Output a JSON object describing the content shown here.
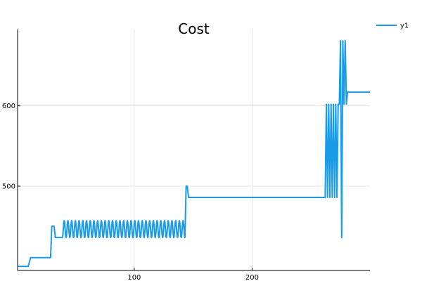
{
  "chart_data": {
    "type": "line",
    "title": "Cost",
    "xlabel": "",
    "ylabel": "",
    "xlim": [
      1,
      300
    ],
    "ylim": [
      395,
      695
    ],
    "x_ticks": [
      100,
      200
    ],
    "y_ticks": [
      500,
      600
    ],
    "x_tick_labels": [
      "100",
      "200"
    ],
    "y_tick_labels": [
      "500",
      "600"
    ],
    "grid": true,
    "legend_position": "top-right",
    "series": [
      {
        "name": "y1",
        "color": "#1a9be8",
        "segments": [
          {
            "x": [
              1,
              10,
              12,
              29,
              30,
              32,
              33
            ],
            "y": [
              400,
              400,
              411,
              411,
              450,
              450,
              436
            ]
          },
          {
            "type": "oscillation",
            "x_start": 39,
            "x_end": 143,
            "y_low": 436,
            "y_high": 457,
            "cycles": 33
          },
          {
            "x": [
              143,
              144,
              145,
              146,
              147,
              262
            ],
            "y": [
              436,
              500,
              500,
              486,
              486,
              486
            ]
          },
          {
            "x": [
              262,
              263,
              264,
              265,
              266,
              267,
              268,
              269,
              270,
              271,
              272,
              273,
              274,
              275,
              276,
              277,
              278,
              279,
              280,
              281,
              282,
              283,
              300
            ],
            "y": [
              486,
              602,
              486,
              602,
              486,
              602,
              486,
              602,
              486,
              602,
              486,
              602,
              602,
              681,
              436,
              681,
              602,
              681,
              602,
              617,
              617,
              617,
              617
            ]
          }
        ]
      }
    ]
  }
}
